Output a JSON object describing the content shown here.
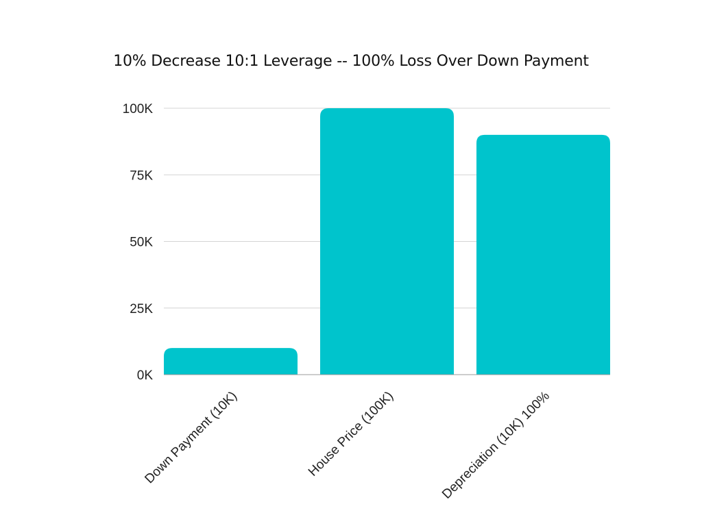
{
  "chart_data": {
    "type": "bar",
    "title": "10% Decrease 10:1 Leverage -- 100% Loss Over Down Payment",
    "categories": [
      "Down Payment (10K)",
      "House Price (100K)",
      "Depreciation (10K)  100%"
    ],
    "values": [
      10000,
      100000,
      90000
    ],
    "ylim": [
      0,
      100000
    ],
    "yticks": [
      0,
      25000,
      50000,
      75000,
      100000
    ],
    "ytick_labels": [
      "0K",
      "25K",
      "50K",
      "75K",
      "100K"
    ],
    "xlabel": "",
    "ylabel": "",
    "grid": true,
    "legend": "none",
    "bar_color": "#00c4cc"
  }
}
